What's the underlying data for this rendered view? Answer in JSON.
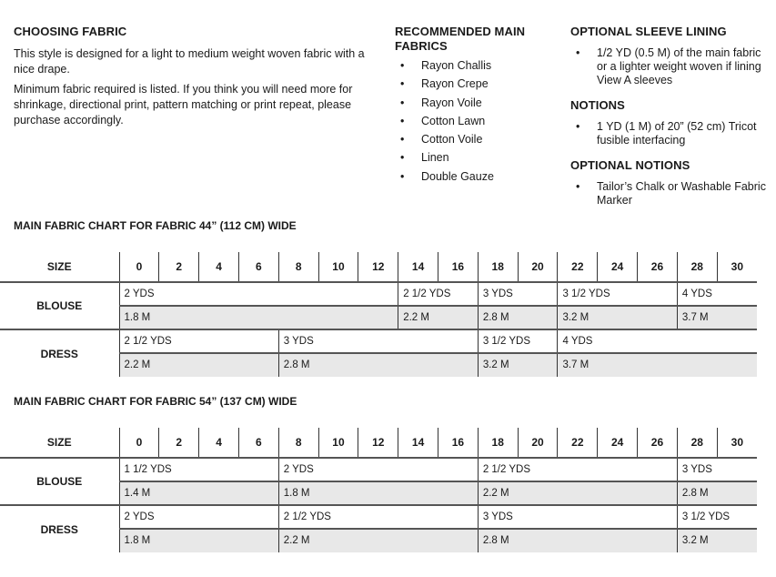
{
  "choosing": {
    "title": "CHOOSING FABRIC",
    "p1": "This style is designed for a light to medium weight woven fabric with a nice drape.",
    "p2": "Minimum fabric required is listed. If you think you will need more for shrinkage, directional print, pattern matching or print repeat, please purchase accordingly."
  },
  "recommended": {
    "title": "RECOMMENDED MAIN FABRICS",
    "items": [
      "Rayon Challis",
      "Rayon Crepe",
      "Rayon Voile",
      "Cotton Lawn",
      "Cotton Voile",
      "Linen",
      "Double Gauze"
    ]
  },
  "sleeve": {
    "title": "OPTIONAL SLEEVE LINING",
    "items": [
      "1/2 YD (0.5 M) of the main fabric or a lighter weight woven if lining View A sleeves"
    ]
  },
  "notions": {
    "title": "NOTIONS",
    "items": [
      "1 YD (1 M) of 20” (52 cm) Tricot fusible interfacing"
    ]
  },
  "optional_notions": {
    "title": "OPTIONAL NOTIONS",
    "items": [
      "Tailor’s Chalk or Washable Fabric Marker"
    ]
  },
  "charts": [
    {
      "title": "MAIN FABRIC CHART FOR FABRIC 44” (112 CM) WIDE",
      "size_label": "SIZE",
      "sizes": [
        "0",
        "2",
        "4",
        "6",
        "8",
        "10",
        "12",
        "14",
        "16",
        "18",
        "20",
        "22",
        "24",
        "26",
        "28",
        "30"
      ],
      "rows": [
        {
          "label": "BLOUSE",
          "segments": [
            {
              "sizes": "0-12",
              "yds": "2 YDS",
              "m": "1.8 M",
              "span": 7
            },
            {
              "sizes": "14-16",
              "yds": "2 1/2 YDS",
              "m": "2.2 M",
              "span": 2
            },
            {
              "sizes": "18-20",
              "yds": "3 YDS",
              "m": "2.8 M",
              "span": 2
            },
            {
              "sizes": "22-26",
              "yds": "3 1/2 YDS",
              "m": "3.2 M",
              "span": 3
            },
            {
              "sizes": "28-30",
              "yds": "4 YDS",
              "m": "3.7 M",
              "span": 2
            }
          ]
        },
        {
          "label": "DRESS",
          "segments": [
            {
              "sizes": "0-6",
              "yds": "2 1/2 YDS",
              "m": "2.2 M",
              "span": 4
            },
            {
              "sizes": "8-16",
              "yds": "3 YDS",
              "m": "2.8 M",
              "span": 5
            },
            {
              "sizes": "18-20",
              "yds": "3 1/2 YDS",
              "m": "3.2 M",
              "span": 2
            },
            {
              "sizes": "22-30",
              "yds": "4 YDS",
              "m": "3.7 M",
              "span": 5
            }
          ]
        }
      ]
    },
    {
      "title": "MAIN FABRIC CHART FOR FABRIC 54” (137 CM) WIDE",
      "size_label": "SIZE",
      "sizes": [
        "0",
        "2",
        "4",
        "6",
        "8",
        "10",
        "12",
        "14",
        "16",
        "18",
        "20",
        "22",
        "24",
        "26",
        "28",
        "30"
      ],
      "rows": [
        {
          "label": "BLOUSE",
          "segments": [
            {
              "sizes": "0-6",
              "yds": "1 1/2 YDS",
              "m": "1.4 M",
              "span": 4
            },
            {
              "sizes": "8-16",
              "yds": "2 YDS",
              "m": "1.8 M",
              "span": 5
            },
            {
              "sizes": "18-26",
              "yds": "2 1/2 YDS",
              "m": "2.2 M",
              "span": 5
            },
            {
              "sizes": "28-30",
              "yds": "3 YDS",
              "m": "2.8 M",
              "span": 2
            }
          ]
        },
        {
          "label": "DRESS",
          "segments": [
            {
              "sizes": "0-6",
              "yds": "2 YDS",
              "m": "1.8 M",
              "span": 4
            },
            {
              "sizes": "8-16",
              "yds": "2 1/2 YDS",
              "m": "2.2 M",
              "span": 5
            },
            {
              "sizes": "18-26",
              "yds": "3 YDS",
              "m": "2.8 M",
              "span": 5
            },
            {
              "sizes": "28-30",
              "yds": "3 1/2 YDS",
              "m": "3.2 M",
              "span": 2
            }
          ]
        }
      ]
    }
  ]
}
